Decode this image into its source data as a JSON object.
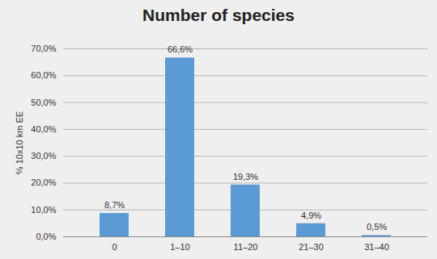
{
  "chart_data": {
    "type": "bar",
    "title": "Number of species",
    "y_label": "% 10x10 km EE",
    "categories": [
      "0",
      "1–10",
      "11–20",
      "21–30",
      "31–40"
    ],
    "values": [
      8.7,
      66.6,
      19.3,
      4.9,
      0.5
    ],
    "value_labels": [
      "8,7%",
      "66,6%",
      "19,3%",
      "4,9%",
      "0,5%"
    ],
    "data_labels": true,
    "color": "#5b9bd5",
    "ylim": [
      0,
      70
    ],
    "yticks": [
      {
        "value": 0,
        "label": "0,0%"
      },
      {
        "value": 10,
        "label": "10,0%"
      },
      {
        "value": 20,
        "label": "20,0%"
      },
      {
        "value": 30,
        "label": "30,0%"
      },
      {
        "value": 40,
        "label": "40,0%"
      },
      {
        "value": 50,
        "label": "50,0%"
      },
      {
        "value": 60,
        "label": "60,0%"
      },
      {
        "value": 70,
        "label": "70,0%"
      }
    ],
    "grid": true
  }
}
